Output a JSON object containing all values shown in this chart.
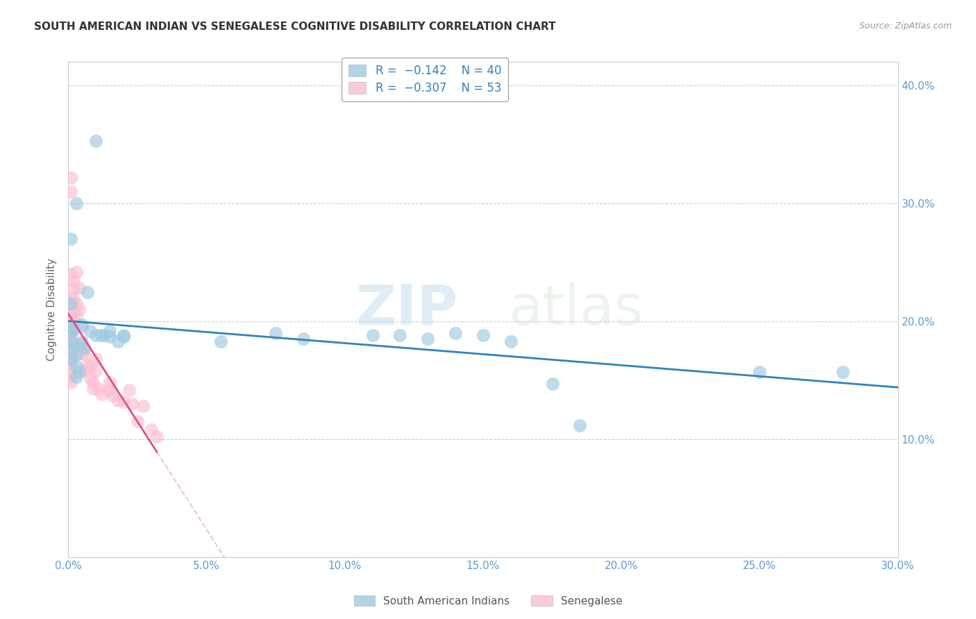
{
  "title": "SOUTH AMERICAN INDIAN VS SENEGALESE COGNITIVE DISABILITY CORRELATION CHART",
  "source": "Source: ZipAtlas.com",
  "ylabel": "Cognitive Disability",
  "xlim": [
    0.0,
    0.3
  ],
  "ylim": [
    0.0,
    0.42
  ],
  "xticks": [
    0.0,
    0.05,
    0.1,
    0.15,
    0.2,
    0.25,
    0.3
  ],
  "yticks": [
    0.0,
    0.1,
    0.2,
    0.3,
    0.4
  ],
  "axis_color": "#5b9bd5",
  "grid_color": "#c8c8c8",
  "watermark_zip": "ZIP",
  "watermark_atlas": "atlas",
  "blue_color": "#9ecae1",
  "pink_color": "#fcbfd2",
  "blue_line_color": "#3182bd",
  "pink_line_color": "#e05080",
  "pink_dash_color": "#e8b8c8",
  "south_american_indians_x": [
    0.002,
    0.01,
    0.003,
    0.001,
    0.001,
    0.001,
    0.001,
    0.002,
    0.002,
    0.003,
    0.001,
    0.003,
    0.004,
    0.003,
    0.005,
    0.005,
    0.006,
    0.007,
    0.008,
    0.01,
    0.012,
    0.013,
    0.015,
    0.015,
    0.018,
    0.02,
    0.02,
    0.055,
    0.075,
    0.085,
    0.11,
    0.12,
    0.13,
    0.14,
    0.15,
    0.16,
    0.175,
    0.185,
    0.25,
    0.28
  ],
  "south_american_indians_y": [
    0.193,
    0.353,
    0.3,
    0.27,
    0.215,
    0.195,
    0.19,
    0.182,
    0.178,
    0.172,
    0.168,
    0.162,
    0.157,
    0.153,
    0.197,
    0.182,
    0.177,
    0.225,
    0.192,
    0.188,
    0.188,
    0.188,
    0.192,
    0.187,
    0.183,
    0.187,
    0.188,
    0.183,
    0.19,
    0.185,
    0.188,
    0.188,
    0.185,
    0.19,
    0.188,
    0.183,
    0.147,
    0.112,
    0.157,
    0.157
  ],
  "senegalese_x": [
    0.001,
    0.001,
    0.001,
    0.001,
    0.001,
    0.001,
    0.001,
    0.001,
    0.001,
    0.001,
    0.001,
    0.001,
    0.001,
    0.001,
    0.001,
    0.001,
    0.001,
    0.001,
    0.002,
    0.002,
    0.002,
    0.002,
    0.002,
    0.003,
    0.003,
    0.003,
    0.004,
    0.004,
    0.005,
    0.005,
    0.005,
    0.006,
    0.006,
    0.007,
    0.008,
    0.008,
    0.009,
    0.009,
    0.01,
    0.01,
    0.011,
    0.012,
    0.015,
    0.015,
    0.016,
    0.018,
    0.02,
    0.022,
    0.023,
    0.025,
    0.027,
    0.03,
    0.032
  ],
  "senegalese_y": [
    0.322,
    0.31,
    0.24,
    0.22,
    0.215,
    0.205,
    0.2,
    0.195,
    0.192,
    0.188,
    0.183,
    0.178,
    0.173,
    0.168,
    0.163,
    0.158,
    0.153,
    0.148,
    0.235,
    0.228,
    0.218,
    0.208,
    0.2,
    0.242,
    0.215,
    0.205,
    0.228,
    0.21,
    0.195,
    0.183,
    0.173,
    0.172,
    0.158,
    0.163,
    0.162,
    0.152,
    0.148,
    0.143,
    0.168,
    0.158,
    0.143,
    0.138,
    0.148,
    0.142,
    0.137,
    0.133,
    0.132,
    0.142,
    0.13,
    0.115,
    0.128,
    0.108,
    0.102
  ]
}
